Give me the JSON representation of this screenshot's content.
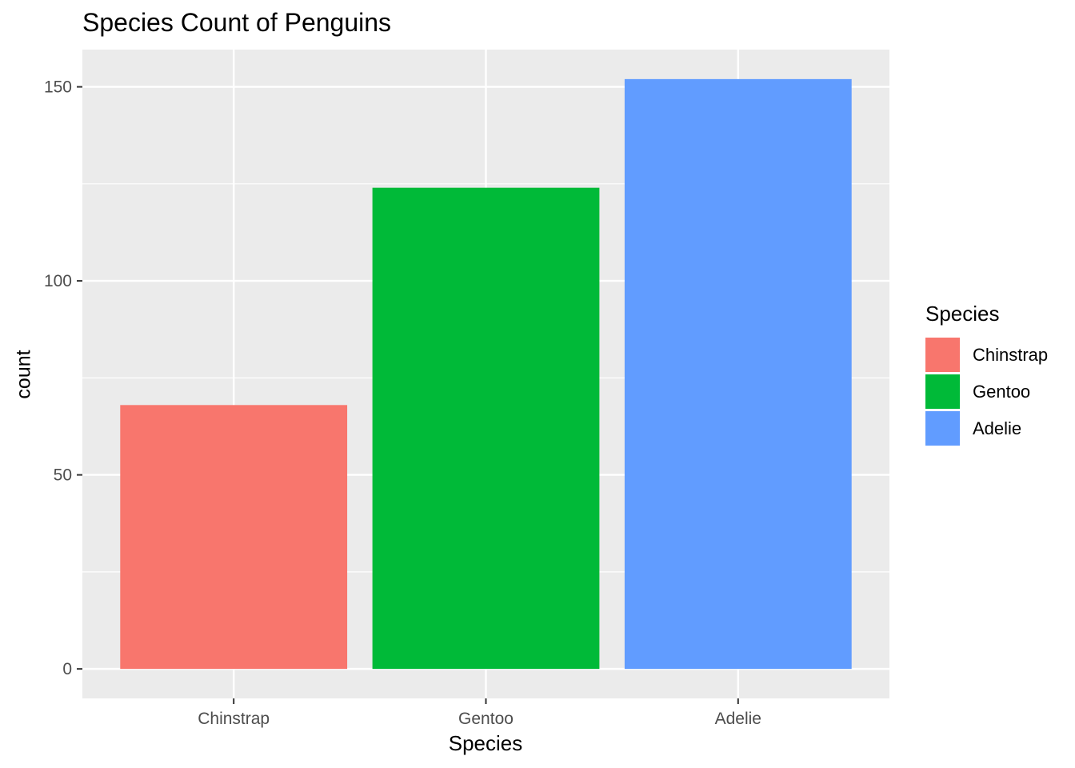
{
  "chart_data": {
    "type": "bar",
    "title": "Species Count of Penguins",
    "xlabel": "Species",
    "ylabel": "count",
    "categories": [
      "Chinstrap",
      "Gentoo",
      "Adelie"
    ],
    "values": [
      68,
      124,
      152
    ],
    "colors": [
      "#F8766D",
      "#00BA38",
      "#619CFF"
    ],
    "ylim": [
      -7.6,
      159.6
    ],
    "yticks": [
      0,
      50,
      100,
      150
    ],
    "ytick_labels": [
      "0",
      "50",
      "100",
      "150"
    ],
    "grid": true,
    "panel_background": "#EBEBEB",
    "legend": {
      "title": "Species",
      "placement": "right",
      "entries": [
        "Chinstrap",
        "Gentoo",
        "Adelie"
      ]
    }
  }
}
